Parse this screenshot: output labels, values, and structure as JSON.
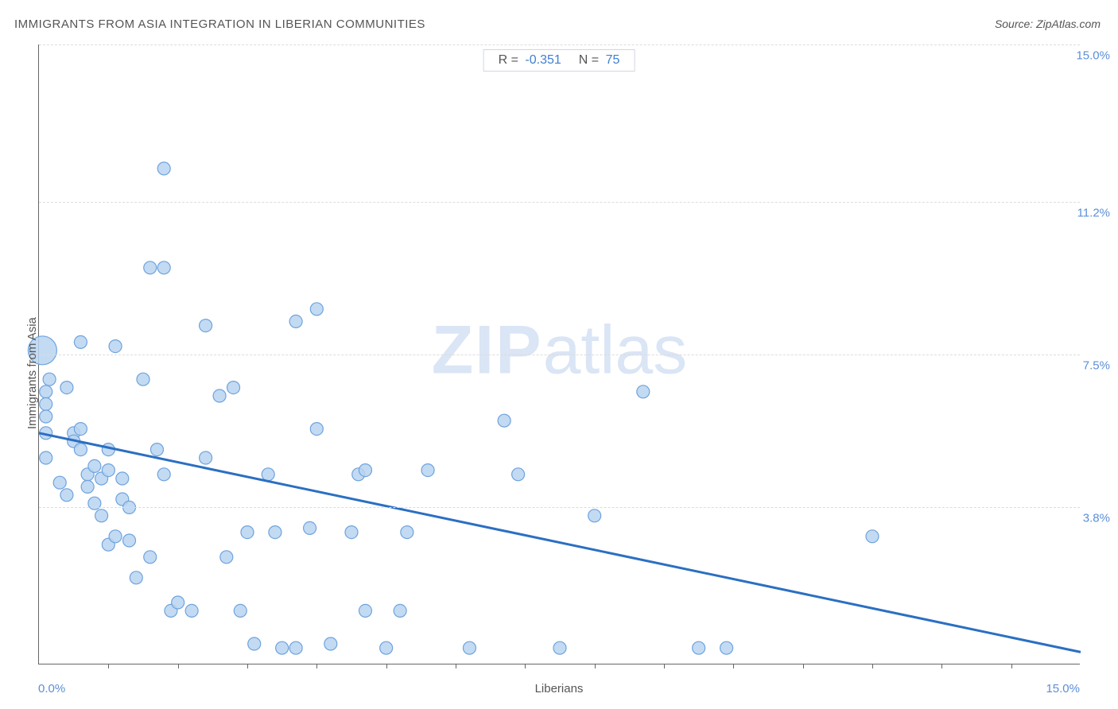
{
  "title": "IMMIGRANTS FROM ASIA INTEGRATION IN LIBERIAN COMMUNITIES",
  "source": "Source: ZipAtlas.com",
  "watermark_zip": "ZIP",
  "watermark_atlas": "atlas",
  "stats": {
    "r_label": "R =",
    "r_value": "-0.351",
    "n_label": "N =",
    "n_value": "75"
  },
  "chart": {
    "type": "scatter",
    "xlabel": "Liberians",
    "ylabel": "Immigrants from Asia",
    "xlim": [
      0,
      15
    ],
    "ylim": [
      0,
      15
    ],
    "x_tick_min_label": "0.0%",
    "x_tick_max_label": "15.0%",
    "y_tick_labels": [
      {
        "value": 3.8,
        "label": "3.8%"
      },
      {
        "value": 7.5,
        "label": "7.5%"
      },
      {
        "value": 11.2,
        "label": "11.2%"
      },
      {
        "value": 15.0,
        "label": "15.0%"
      }
    ],
    "x_minor_ticks": [
      1,
      2,
      3,
      4,
      5,
      6,
      7,
      8,
      9,
      10,
      11,
      12,
      13,
      14
    ],
    "background_color": "#ffffff",
    "grid_color": "#dcdcdc",
    "point_fill": "#b9d4f1",
    "point_stroke": "#6ea3dd",
    "point_radius": 8,
    "large_point_radius": 18,
    "trend_line_color": "#2b6fc2",
    "trend_line_width": 3,
    "trend_line": {
      "x1": 0,
      "y1": 5.6,
      "x2": 15,
      "y2": 0.3
    },
    "points": [
      {
        "x": 0.05,
        "y": 7.6,
        "r": 18
      },
      {
        "x": 0.1,
        "y": 6.6
      },
      {
        "x": 0.1,
        "y": 6.3
      },
      {
        "x": 0.1,
        "y": 6.0
      },
      {
        "x": 0.1,
        "y": 5.6
      },
      {
        "x": 0.1,
        "y": 5.0
      },
      {
        "x": 0.15,
        "y": 6.9
      },
      {
        "x": 0.4,
        "y": 6.7
      },
      {
        "x": 0.5,
        "y": 5.6
      },
      {
        "x": 0.5,
        "y": 5.4
      },
      {
        "x": 0.6,
        "y": 7.8
      },
      {
        "x": 0.6,
        "y": 5.7
      },
      {
        "x": 0.6,
        "y": 5.2
      },
      {
        "x": 0.7,
        "y": 4.6
      },
      {
        "x": 0.7,
        "y": 4.3
      },
      {
        "x": 0.8,
        "y": 4.8
      },
      {
        "x": 0.8,
        "y": 3.9
      },
      {
        "x": 0.9,
        "y": 4.5
      },
      {
        "x": 0.9,
        "y": 3.6
      },
      {
        "x": 1.0,
        "y": 5.2
      },
      {
        "x": 1.0,
        "y": 4.7
      },
      {
        "x": 1.0,
        "y": 2.9
      },
      {
        "x": 1.1,
        "y": 7.7
      },
      {
        "x": 1.1,
        "y": 3.1
      },
      {
        "x": 1.2,
        "y": 4.5
      },
      {
        "x": 1.2,
        "y": 4.0
      },
      {
        "x": 1.3,
        "y": 3.0
      },
      {
        "x": 1.3,
        "y": 3.8
      },
      {
        "x": 1.4,
        "y": 2.1
      },
      {
        "x": 1.5,
        "y": 6.9
      },
      {
        "x": 1.6,
        "y": 9.6
      },
      {
        "x": 1.6,
        "y": 2.6
      },
      {
        "x": 1.7,
        "y": 5.2
      },
      {
        "x": 1.8,
        "y": 12.0
      },
      {
        "x": 1.8,
        "y": 9.6
      },
      {
        "x": 1.8,
        "y": 4.6
      },
      {
        "x": 1.9,
        "y": 1.3
      },
      {
        "x": 2.0,
        "y": 1.5
      },
      {
        "x": 2.2,
        "y": 1.3
      },
      {
        "x": 2.4,
        "y": 8.2
      },
      {
        "x": 2.6,
        "y": 6.5
      },
      {
        "x": 2.7,
        "y": 2.6
      },
      {
        "x": 2.8,
        "y": 6.7
      },
      {
        "x": 2.9,
        "y": 1.3
      },
      {
        "x": 3.0,
        "y": 3.2
      },
      {
        "x": 3.1,
        "y": 0.5
      },
      {
        "x": 3.3,
        "y": 4.6
      },
      {
        "x": 3.4,
        "y": 3.2
      },
      {
        "x": 3.5,
        "y": 0.4
      },
      {
        "x": 3.7,
        "y": 8.3
      },
      {
        "x": 3.7,
        "y": 0.4
      },
      {
        "x": 3.9,
        "y": 3.3
      },
      {
        "x": 4.0,
        "y": 8.6
      },
      {
        "x": 4.0,
        "y": 5.7
      },
      {
        "x": 4.2,
        "y": 0.5
      },
      {
        "x": 4.5,
        "y": 3.2
      },
      {
        "x": 4.6,
        "y": 4.6
      },
      {
        "x": 4.7,
        "y": 4.7
      },
      {
        "x": 4.7,
        "y": 1.3
      },
      {
        "x": 5.0,
        "y": 0.4
      },
      {
        "x": 5.2,
        "y": 1.3
      },
      {
        "x": 5.3,
        "y": 3.2
      },
      {
        "x": 5.6,
        "y": 4.7
      },
      {
        "x": 6.2,
        "y": 0.4
      },
      {
        "x": 6.7,
        "y": 5.9
      },
      {
        "x": 6.9,
        "y": 4.6
      },
      {
        "x": 7.5,
        "y": 0.4
      },
      {
        "x": 8.0,
        "y": 3.6
      },
      {
        "x": 8.7,
        "y": 6.6
      },
      {
        "x": 9.5,
        "y": 0.4
      },
      {
        "x": 9.9,
        "y": 0.4
      },
      {
        "x": 12.0,
        "y": 3.1
      },
      {
        "x": 0.3,
        "y": 4.4
      },
      {
        "x": 0.4,
        "y": 4.1
      },
      {
        "x": 2.4,
        "y": 5.0
      }
    ]
  }
}
